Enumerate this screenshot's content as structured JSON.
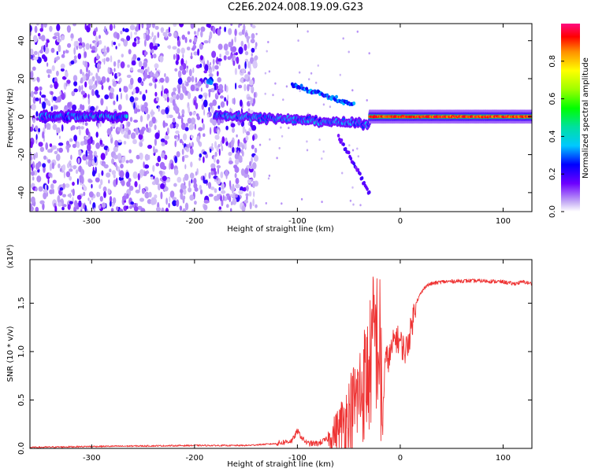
{
  "title": "C2E6.2024.008.19.09.G23",
  "colors": {
    "snr_line": "#ee3333",
    "spectrum_track": "#f04646",
    "spectrum_halo": "#dcc8fa"
  },
  "chart_data": [
    {
      "type": "heatmap",
      "xlabel": "Height of straight line (km)",
      "ylabel": "Frequency (Hz)",
      "xlim": [
        -360,
        128
      ],
      "ylim": [
        -50,
        49
      ],
      "xticks": [
        -300,
        -200,
        -100,
        0,
        100
      ],
      "yticks": [
        -40,
        -20,
        0,
        20,
        40
      ],
      "grid": false,
      "colorbar": {
        "label": "Normalized spectral amplitude",
        "range": [
          0,
          1
        ],
        "ticks": [
          "0.0",
          "0.2",
          "0.4",
          "0.6",
          "0.8"
        ],
        "colormap": "rainbow"
      },
      "features": [
        {
          "name": "noise region",
          "x_range": [
            -360,
            -140
          ],
          "amplitude": "0.05-0.25"
        },
        {
          "name": "carrier segment",
          "x_range": [
            -350,
            -265
          ],
          "frequency_hz": 0,
          "amplitude": 0.35
        },
        {
          "name": "isolated blob",
          "x": -185,
          "frequency_hz": 19,
          "amplitude": 0.3
        },
        {
          "name": "carrier segment",
          "x_range": [
            -180,
            -30
          ],
          "frequency_hz": [
            1,
            -4
          ],
          "amplitude": 0.3
        },
        {
          "name": "upper branch",
          "x_range": [
            -105,
            -45
          ],
          "frequency_hz": [
            17,
            6
          ],
          "amplitude": 0.3
        },
        {
          "name": "lower branch",
          "x_range": [
            -60,
            -30
          ],
          "frequency_hz": [
            -10,
            -40
          ],
          "amplitude": 0.15
        },
        {
          "name": "strong carrier",
          "x_range": [
            -30,
            128
          ],
          "frequency_hz": 0,
          "amplitude": 0.95
        }
      ]
    },
    {
      "type": "line",
      "xlabel": "Height of straight line (km)",
      "ylabel": "SNR (10 * v/v)",
      "y_multiplier": "(x10⁴)",
      "xlim": [
        -360,
        128
      ],
      "ylim": [
        0,
        1.95
      ],
      "xticks": [
        -300,
        -200,
        -100,
        0,
        100
      ],
      "yticks": [
        "0.0",
        "0.5",
        "1.0",
        "1.5"
      ],
      "grid": false,
      "series": [
        {
          "x": [
            -360,
            -300,
            -200,
            -150,
            -120,
            -105,
            -100,
            -95,
            -90,
            -80,
            -70,
            -60,
            -50,
            -40,
            -30,
            -25,
            -20,
            -17,
            -15,
            -10,
            -5,
            0,
            5,
            10,
            15,
            20,
            25,
            30,
            40,
            60,
            80,
            100,
            110,
            120,
            128
          ],
          "values": [
            0.01,
            0.02,
            0.03,
            0.03,
            0.05,
            0.08,
            0.18,
            0.1,
            0.05,
            0.05,
            0.1,
            0.2,
            0.35,
            0.55,
            0.8,
            1.2,
            1.0,
            0.25,
            0.9,
            0.95,
            1.15,
            1.1,
            1.0,
            1.2,
            1.5,
            1.6,
            1.68,
            1.7,
            1.72,
            1.73,
            1.73,
            1.72,
            1.7,
            1.72,
            1.7
          ]
        }
      ]
    }
  ]
}
